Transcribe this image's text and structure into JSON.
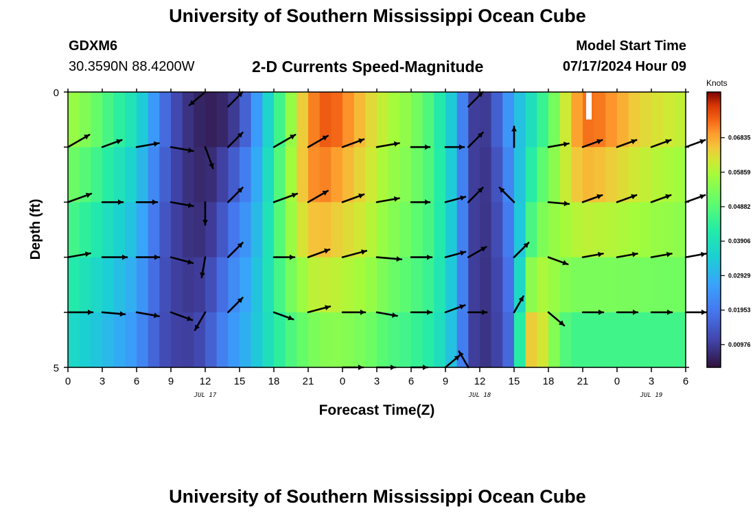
{
  "header": {
    "title": "University of Southern Mississippi Ocean Cube",
    "station": "GDXM6",
    "coords": "30.3590N  88.4200W",
    "subtitle": "2-D Currents Speed-Magnitude",
    "model_start_label": "Model Start Time",
    "model_start_value": "07/17/2024 Hour 09"
  },
  "footer": {
    "title": "University of Southern Mississippi Ocean Cube"
  },
  "chart_data": {
    "type": "heatmap",
    "title": "2-D Currents Speed-Magnitude",
    "xlabel": "Forecast Time(Z)",
    "ylabel": "Depth (ft)",
    "x_range_hours": [
      0,
      54
    ],
    "x_tick_hours": [
      0,
      3,
      6,
      9,
      12,
      15,
      18,
      21,
      24,
      27,
      30,
      33,
      36,
      39,
      42,
      45,
      48,
      51,
      54
    ],
    "x_tick_labels": [
      "0",
      "3",
      "6",
      "9",
      "12",
      "15",
      "18",
      "21",
      "0",
      "3",
      "6",
      "9",
      "12",
      "15",
      "18",
      "21",
      "0",
      "3",
      "6"
    ],
    "date_labels": [
      {
        "text": "JUL 17",
        "hour": 12
      },
      {
        "text": "JUL 18",
        "hour": 36
      },
      {
        "text": "JUL 19",
        "hour": 51
      }
    ],
    "y_range_ft": [
      0,
      5
    ],
    "y_tick_labels": [
      "0",
      "5"
    ],
    "depth_levels_ft": [
      0,
      1,
      2,
      3,
      4,
      5
    ],
    "colorbar": {
      "unit": "Knots",
      "range": [
        0.0033,
        0.0813
      ],
      "tick_values": [
        0.00976,
        0.01953,
        0.02929,
        0.03906,
        0.04882,
        0.05859,
        0.06835
      ],
      "tick_labels": [
        "0.00976",
        "0.01953",
        "0.02929",
        "0.03906",
        "0.04882",
        "0.05859",
        "0.06835"
      ]
    },
    "speed_profiles": {
      "hours": [
        0,
        2,
        4,
        6,
        7,
        8,
        9,
        10,
        11,
        12,
        13,
        14,
        15,
        16,
        17,
        18,
        19,
        20,
        21,
        22,
        23,
        24,
        26,
        28,
        30,
        32,
        34,
        35,
        36,
        37,
        38,
        39,
        40,
        41,
        42,
        43,
        44,
        45,
        46,
        48,
        50,
        52,
        54
      ],
      "rows": [
        [
          0.06,
          0.055,
          0.047,
          0.04,
          0.032,
          0.022,
          0.015,
          0.01,
          0.007,
          0.005,
          0.004,
          0.005,
          0.008,
          0.018,
          0.03,
          0.04,
          0.05,
          0.06,
          0.068,
          0.074,
          0.076,
          0.074,
          0.066,
          0.06,
          0.055,
          0.045,
          0.03,
          0.012,
          0.008,
          0.012,
          0.022,
          0.03,
          0.034,
          0.04,
          0.046,
          0.056,
          0.066,
          0.074,
          0.076,
          0.072,
          0.066,
          0.064,
          0.062
        ],
        [
          0.055,
          0.05,
          0.043,
          0.036,
          0.028,
          0.019,
          0.013,
          0.009,
          0.007,
          0.006,
          0.007,
          0.01,
          0.015,
          0.022,
          0.032,
          0.042,
          0.052,
          0.062,
          0.07,
          0.074,
          0.073,
          0.07,
          0.064,
          0.058,
          0.054,
          0.046,
          0.03,
          0.012,
          0.008,
          0.01,
          0.018,
          0.028,
          0.036,
          0.044,
          0.05,
          0.058,
          0.066,
          0.07,
          0.07,
          0.066,
          0.062,
          0.06,
          0.058
        ],
        [
          0.05,
          0.045,
          0.039,
          0.032,
          0.025,
          0.017,
          0.012,
          0.009,
          0.007,
          0.007,
          0.01,
          0.015,
          0.02,
          0.025,
          0.034,
          0.044,
          0.054,
          0.062,
          0.068,
          0.07,
          0.068,
          0.066,
          0.062,
          0.056,
          0.052,
          0.046,
          0.03,
          0.012,
          0.008,
          0.01,
          0.016,
          0.026,
          0.04,
          0.05,
          0.054,
          0.058,
          0.062,
          0.064,
          0.064,
          0.062,
          0.06,
          0.058,
          0.056
        ],
        [
          0.045,
          0.04,
          0.035,
          0.029,
          0.022,
          0.015,
          0.011,
          0.009,
          0.008,
          0.009,
          0.013,
          0.019,
          0.024,
          0.028,
          0.036,
          0.044,
          0.052,
          0.058,
          0.062,
          0.064,
          0.063,
          0.062,
          0.06,
          0.054,
          0.05,
          0.045,
          0.03,
          0.012,
          0.008,
          0.009,
          0.014,
          0.024,
          0.044,
          0.054,
          0.056,
          0.056,
          0.056,
          0.056,
          0.056,
          0.056,
          0.055,
          0.054,
          0.054
        ],
        [
          0.04,
          0.036,
          0.031,
          0.026,
          0.02,
          0.014,
          0.011,
          0.01,
          0.01,
          0.012,
          0.017,
          0.022,
          0.026,
          0.03,
          0.036,
          0.042,
          0.048,
          0.052,
          0.056,
          0.058,
          0.058,
          0.057,
          0.055,
          0.05,
          0.047,
          0.043,
          0.03,
          0.012,
          0.008,
          0.009,
          0.013,
          0.022,
          0.058,
          0.064,
          0.06,
          0.054,
          0.05,
          0.05,
          0.05,
          0.05,
          0.05,
          0.05,
          0.05
        ],
        [
          0.035,
          0.032,
          0.028,
          0.023,
          0.018,
          0.013,
          0.011,
          0.01,
          0.011,
          0.014,
          0.02,
          0.025,
          0.028,
          0.032,
          0.036,
          0.04,
          0.044,
          0.046,
          0.048,
          0.05,
          0.052,
          0.052,
          0.05,
          0.046,
          0.044,
          0.04,
          0.028,
          0.012,
          0.008,
          0.009,
          0.012,
          0.02,
          0.07,
          0.068,
          0.056,
          0.046,
          0.042,
          0.042,
          0.042,
          0.042,
          0.042,
          0.042,
          0.042
        ]
      ]
    },
    "vectors": {
      "hours": [
        0,
        3,
        6,
        9,
        12,
        14,
        18,
        21,
        24,
        27,
        30,
        33,
        35,
        39,
        42,
        45,
        48,
        51,
        54
      ],
      "rows": [
        [
          [
            0,
            0
          ],
          [
            0,
            0
          ],
          [
            0,
            0
          ],
          [
            0,
            0
          ],
          [
            220,
            1.0
          ],
          [
            45,
            1.0
          ],
          [
            0,
            0
          ],
          [
            0,
            0
          ],
          [
            0,
            0
          ],
          [
            0,
            0
          ],
          [
            0,
            0
          ],
          [
            0,
            0
          ],
          [
            45,
            1.0
          ],
          [
            0,
            0
          ],
          [
            0,
            0
          ],
          [
            0,
            0
          ],
          [
            0,
            0
          ],
          [
            0,
            0
          ],
          [
            0,
            0
          ]
        ],
        [
          [
            30,
            1.2
          ],
          [
            20,
            1.0
          ],
          [
            10,
            1.1
          ],
          [
            -10,
            1.1
          ],
          [
            -70,
            1.1
          ],
          [
            45,
            1.0
          ],
          [
            30,
            1.2
          ],
          [
            30,
            1.1
          ],
          [
            20,
            1.1
          ],
          [
            10,
            1.1
          ],
          [
            0,
            0.9
          ],
          [
            0,
            0.9
          ],
          [
            45,
            1.0
          ],
          [
            90,
            1.0
          ],
          [
            10,
            1.0
          ],
          [
            20,
            1.0
          ],
          [
            20,
            1.0
          ],
          [
            20,
            1.0
          ],
          [
            20,
            1.0
          ]
        ],
        [
          [
            20,
            1.2
          ],
          [
            0,
            1.0
          ],
          [
            0,
            1.0
          ],
          [
            -10,
            1.1
          ],
          [
            -90,
            1.1
          ],
          [
            45,
            1.0
          ],
          [
            20,
            1.2
          ],
          [
            30,
            1.1
          ],
          [
            20,
            1.1
          ],
          [
            10,
            1.1
          ],
          [
            0,
            0.9
          ],
          [
            15,
            1.0
          ],
          [
            45,
            1.0
          ],
          [
            135,
            1.0
          ],
          [
            -5,
            1.0
          ],
          [
            20,
            1.0
          ],
          [
            20,
            1.0
          ],
          [
            20,
            1.0
          ],
          [
            20,
            1.0
          ]
        ],
        [
          [
            10,
            1.1
          ],
          [
            0,
            1.2
          ],
          [
            0,
            1.1
          ],
          [
            -15,
            1.1
          ],
          [
            -100,
            1.0
          ],
          [
            45,
            1.0
          ],
          [
            0,
            1.0
          ],
          [
            20,
            1.1
          ],
          [
            15,
            1.2
          ],
          [
            -5,
            1.2
          ],
          [
            0,
            1.0
          ],
          [
            15,
            1.0
          ],
          [
            30,
            1.0
          ],
          [
            45,
            1.0
          ],
          [
            -20,
            1.0
          ],
          [
            10,
            1.0
          ],
          [
            10,
            1.0
          ],
          [
            10,
            1.0
          ],
          [
            10,
            1.0
          ]
        ],
        [
          [
            0,
            1.2
          ],
          [
            -5,
            1.1
          ],
          [
            -10,
            1.1
          ],
          [
            -20,
            1.1
          ],
          [
            -120,
            1.0
          ],
          [
            45,
            1.0
          ],
          [
            -20,
            1.0
          ],
          [
            15,
            1.1
          ],
          [
            0,
            1.1
          ],
          [
            -10,
            1.0
          ],
          [
            0,
            1.0
          ],
          [
            20,
            1.0
          ],
          [
            0,
            0.9
          ],
          [
            60,
            0.9
          ],
          [
            -40,
            1.0
          ],
          [
            0,
            1.0
          ],
          [
            0,
            1.0
          ],
          [
            0,
            1.0
          ],
          [
            0,
            1.0
          ]
        ],
        [
          [
            0,
            0
          ],
          [
            0,
            0
          ],
          [
            0,
            0
          ],
          [
            0,
            0
          ],
          [
            0,
            0
          ],
          [
            0,
            0
          ],
          [
            0,
            0
          ],
          [
            0,
            0
          ],
          [
            0,
            1.0
          ],
          [
            0,
            0.9
          ],
          [
            0,
            0.8
          ],
          [
            40,
            0.9
          ],
          [
            120,
            0.9
          ],
          [
            0,
            0
          ],
          [
            0,
            0
          ],
          [
            0,
            0
          ],
          [
            0,
            0
          ],
          [
            0,
            0
          ],
          [
            0,
            0
          ]
        ]
      ]
    }
  }
}
